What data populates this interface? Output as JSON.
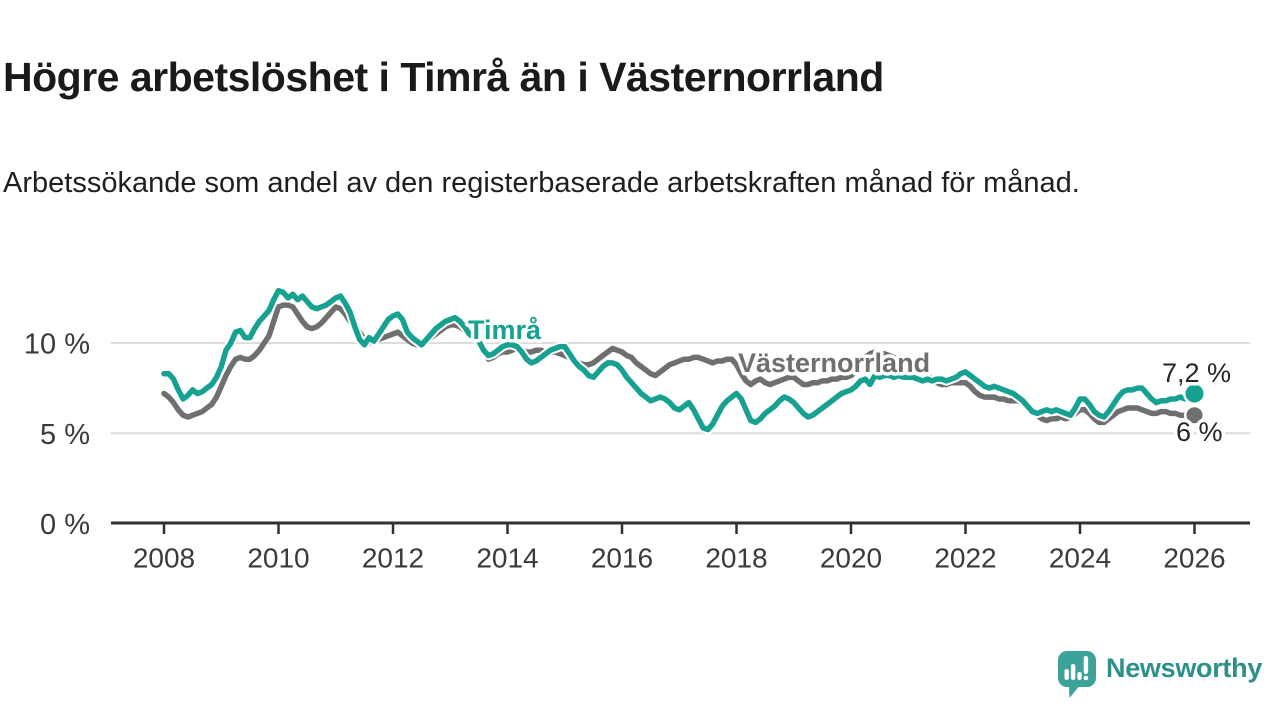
{
  "header": {
    "title": "Högre arbetslöshet i Timrå än i Västernorrland",
    "subtitle": "Arbetssökande som andel av den registerbaserade arbetskraften månad för månad."
  },
  "chart_data": {
    "type": "line",
    "title": "Högre arbetslöshet i Timrå än i Västernorrland",
    "unit": "%",
    "frequency": "monthly",
    "x_start": "2008-01",
    "x_end": "2026-01",
    "ylim": [
      0,
      13.5
    ],
    "grid": "horizontal",
    "y_ticks": [
      {
        "value": 0,
        "label": "0 %"
      },
      {
        "value": 5,
        "label": "5 %"
      },
      {
        "value": 10,
        "label": "10 %"
      }
    ],
    "x_ticks": [
      {
        "year": 2008,
        "label": "2008"
      },
      {
        "year": 2010,
        "label": "2010"
      },
      {
        "year": 2012,
        "label": "2012"
      },
      {
        "year": 2014,
        "label": "2014"
      },
      {
        "year": 2016,
        "label": "2016"
      },
      {
        "year": 2018,
        "label": "2018"
      },
      {
        "year": 2020,
        "label": "2020"
      },
      {
        "year": 2022,
        "label": "2022"
      },
      {
        "year": 2024,
        "label": "2024"
      },
      {
        "year": 2026,
        "label": "2026"
      }
    ],
    "series": [
      {
        "name": "Västernorrland",
        "color": "#6f6f6f",
        "end_label": "6 %",
        "values": [
          7.2,
          7.0,
          6.7,
          6.3,
          6.0,
          5.9,
          6.0,
          6.1,
          6.2,
          6.4,
          6.6,
          7.0,
          7.6,
          8.2,
          8.7,
          9.1,
          9.2,
          9.1,
          9.1,
          9.3,
          9.6,
          10.0,
          10.4,
          11.2,
          12.0,
          12.1,
          12.1,
          12.0,
          11.6,
          11.2,
          10.9,
          10.8,
          10.9,
          11.1,
          11.4,
          11.7,
          12.0,
          11.9,
          11.6,
          11.2,
          11.0,
          10.6,
          10.2,
          10.0,
          10.1,
          10.2,
          10.3,
          10.4,
          10.5,
          10.6,
          10.4,
          10.2,
          10.0,
          9.9,
          10.0,
          10.1,
          10.3,
          10.5,
          10.7,
          10.9,
          11.0,
          11.0,
          10.9,
          10.7,
          10.4,
          10.2,
          10.0,
          9.6,
          9.1,
          9.2,
          9.4,
          9.5,
          9.5,
          9.6,
          9.7,
          9.6,
          9.5,
          9.5,
          9.6,
          9.6,
          9.5,
          9.5,
          9.5,
          9.4,
          9.3,
          9.2,
          9.0,
          8.9,
          8.8,
          8.8,
          8.9,
          9.1,
          9.3,
          9.5,
          9.7,
          9.6,
          9.5,
          9.3,
          9.2,
          8.9,
          8.7,
          8.5,
          8.3,
          8.2,
          8.4,
          8.6,
          8.8,
          8.9,
          9.0,
          9.1,
          9.1,
          9.2,
          9.2,
          9.1,
          9.0,
          8.9,
          9.0,
          9.0,
          9.1,
          9.1,
          8.8,
          8.3,
          7.9,
          7.7,
          7.9,
          8.0,
          7.8,
          7.7,
          7.8,
          7.9,
          8.0,
          8.1,
          8.1,
          7.9,
          7.7,
          7.7,
          7.8,
          7.8,
          7.9,
          7.9,
          8.0,
          8.0,
          8.1,
          8.1,
          8.2,
          8.4,
          8.8,
          9.2,
          9.4,
          9.5,
          9.4,
          9.4,
          9.3,
          9.2,
          9.1,
          9.0,
          8.9,
          8.8,
          8.6,
          8.4,
          8.2,
          8.0,
          7.8,
          7.7,
          7.7,
          7.8,
          7.8,
          7.8,
          7.8,
          7.6,
          7.3,
          7.1,
          7.0,
          7.0,
          7.0,
          6.9,
          6.9,
          6.8,
          6.8,
          6.8,
          6.7,
          6.6,
          6.3,
          6.0,
          5.8,
          5.7,
          5.8,
          5.8,
          5.9,
          5.8,
          5.9,
          6.1,
          6.3,
          6.3,
          6.1,
          5.8,
          5.6,
          5.6,
          5.8,
          6.0,
          6.2,
          6.3,
          6.4,
          6.4,
          6.4,
          6.3,
          6.2,
          6.1,
          6.1,
          6.2,
          6.2,
          6.1,
          6.1,
          6.0,
          6.0,
          5.9,
          6.0
        ]
      },
      {
        "name": "Timrå",
        "color": "#16a191",
        "end_label": "7,2 %",
        "values": [
          8.3,
          8.3,
          8.0,
          7.4,
          6.9,
          7.1,
          7.4,
          7.2,
          7.3,
          7.5,
          7.7,
          8.1,
          8.7,
          9.6,
          10.0,
          10.6,
          10.7,
          10.3,
          10.3,
          10.8,
          11.2,
          11.5,
          11.8,
          12.4,
          12.9,
          12.8,
          12.5,
          12.7,
          12.4,
          12.6,
          12.3,
          12.0,
          11.9,
          12.0,
          12.1,
          12.3,
          12.5,
          12.6,
          12.2,
          11.7,
          10.9,
          10.2,
          9.9,
          10.3,
          10.1,
          10.5,
          10.9,
          11.3,
          11.5,
          11.6,
          11.3,
          10.6,
          10.3,
          10.1,
          9.9,
          10.2,
          10.5,
          10.8,
          11.0,
          11.2,
          11.3,
          11.4,
          11.2,
          10.9,
          10.5,
          10.3,
          10.1,
          9.6,
          9.3,
          9.4,
          9.6,
          9.8,
          9.9,
          9.9,
          9.8,
          9.5,
          9.1,
          8.9,
          9.0,
          9.2,
          9.4,
          9.6,
          9.7,
          9.8,
          9.8,
          9.4,
          9.0,
          8.7,
          8.5,
          8.2,
          8.1,
          8.4,
          8.7,
          8.9,
          8.9,
          8.8,
          8.5,
          8.1,
          7.8,
          7.5,
          7.2,
          7.0,
          6.8,
          6.9,
          7.0,
          6.9,
          6.7,
          6.4,
          6.3,
          6.5,
          6.7,
          6.3,
          5.8,
          5.3,
          5.2,
          5.5,
          6.0,
          6.5,
          6.8,
          7.0,
          7.2,
          6.9,
          6.3,
          5.7,
          5.6,
          5.8,
          6.1,
          6.3,
          6.5,
          6.8,
          7.0,
          6.9,
          6.7,
          6.4,
          6.1,
          5.9,
          6.0,
          6.2,
          6.4,
          6.6,
          6.8,
          7.0,
          7.2,
          7.3,
          7.4,
          7.6,
          7.9,
          8.0,
          7.7,
          8.2,
          8.1,
          8.2,
          8.2,
          8.1,
          8.2,
          8.1,
          8.1,
          8.1,
          8.0,
          7.9,
          8.0,
          7.9,
          8.0,
          8.0,
          7.9,
          8.0,
          8.1,
          8.3,
          8.4,
          8.2,
          8.0,
          7.8,
          7.6,
          7.5,
          7.6,
          7.5,
          7.4,
          7.3,
          7.2,
          7.0,
          6.8,
          6.5,
          6.2,
          6.1,
          6.2,
          6.3,
          6.2,
          6.3,
          6.2,
          6.1,
          6.0,
          6.4,
          6.9,
          6.9,
          6.6,
          6.2,
          6.0,
          5.9,
          6.2,
          6.6,
          7.0,
          7.3,
          7.4,
          7.4,
          7.5,
          7.5,
          7.2,
          6.9,
          6.7,
          6.8,
          6.8,
          6.9,
          6.9,
          7.0,
          6.9,
          7.0,
          7.2
        ]
      }
    ]
  },
  "style": {
    "grid_color": "#dcdcdc",
    "axis_color": "#303030",
    "tick_label_color": "#3a3a3a",
    "end_label_color": "#262626"
  },
  "branding": {
    "name": "Newsworthy",
    "icon": "bar-chart-speech-bubble-icon",
    "icon_color": "#3da39a",
    "text_color": "#2e908b"
  }
}
